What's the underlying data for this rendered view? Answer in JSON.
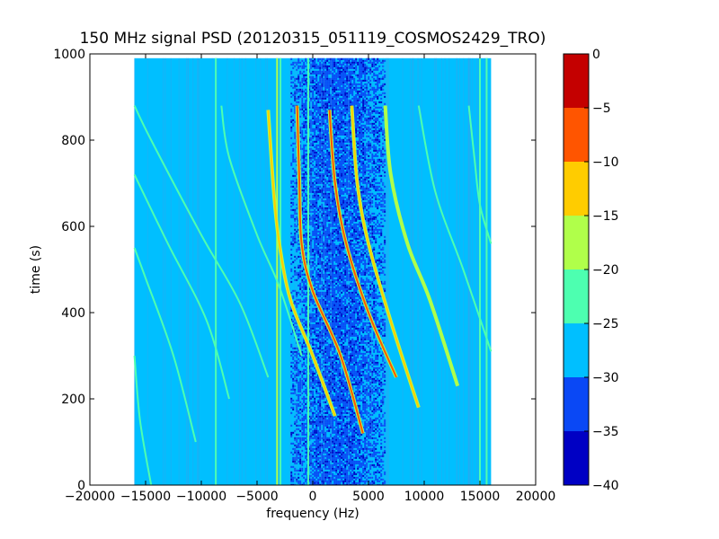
{
  "chart_data": {
    "type": "heatmap",
    "title": "150 MHz signal PSD (20120315_051119_COSMOS2429_TRO)",
    "xlabel": "frequency (Hz)",
    "ylabel": "time (s)",
    "xlim": [
      -20000,
      20000
    ],
    "ylim": [
      0,
      1000
    ],
    "data_extent": {
      "x": [
        -16000,
        16000
      ],
      "y": [
        0,
        990
      ]
    },
    "x_ticks": [
      -20000,
      -15000,
      -10000,
      -5000,
      0,
      5000,
      10000,
      15000,
      20000
    ],
    "x_tick_labels": [
      "−20000",
      "−15000",
      "−10000",
      "−5000",
      "0",
      "5000",
      "10000",
      "15000",
      "20000"
    ],
    "y_ticks": [
      0,
      200,
      400,
      600,
      800,
      1000
    ],
    "y_tick_labels": [
      "0",
      "200",
      "400",
      "600",
      "800",
      "1000"
    ],
    "colorbar": {
      "ticks": [
        0,
        -5,
        -10,
        -15,
        -20,
        -25,
        -30,
        -35,
        -40
      ],
      "tick_labels": [
        "0",
        "−5",
        "−10",
        "−15",
        "−20",
        "−25",
        "−30",
        "−35",
        "−40"
      ],
      "levels": [
        {
          "range": [
            -40,
            -35
          ],
          "color": "#0000c4"
        },
        {
          "range": [
            -35,
            -30
          ],
          "color": "#0a48f5"
        },
        {
          "range": [
            -30,
            -25
          ],
          "color": "#00bfff"
        },
        {
          "range": [
            -25,
            -20
          ],
          "color": "#4dffb0"
        },
        {
          "range": [
            -20,
            -15
          ],
          "color": "#b0ff4a"
        },
        {
          "range": [
            -15,
            -10
          ],
          "color": "#ffcc00"
        },
        {
          "range": [
            -10,
            -5
          ],
          "color": "#ff5500"
        },
        {
          "range": [
            -5,
            0
          ],
          "color": "#c40000"
        }
      ]
    },
    "background_level_db": -28,
    "noise_band_hz": [
      -2000,
      6500
    ],
    "vertical_lines": [
      {
        "x": -8700,
        "level_db": -22
      },
      {
        "x": -3200,
        "level_db": -15
      },
      {
        "x": -2900,
        "level_db": -22
      },
      {
        "x": -400,
        "level_db": -22
      },
      {
        "x": 15000,
        "level_db": -22
      },
      {
        "x": 15600,
        "level_db": -22
      }
    ],
    "doppler_curves": [
      {
        "points": [
          [
            -14500,
            0
          ],
          [
            -15500,
            150
          ],
          [
            -16000,
            300
          ]
        ],
        "level_db": -23
      },
      {
        "points": [
          [
            -10500,
            100
          ],
          [
            -12500,
            300
          ],
          [
            -15000,
            480
          ],
          [
            -16000,
            550
          ]
        ],
        "level_db": -22
      },
      {
        "points": [
          [
            -7500,
            200
          ],
          [
            -9500,
            380
          ],
          [
            -13000,
            560
          ],
          [
            -16000,
            720
          ]
        ],
        "level_db": -22
      },
      {
        "points": [
          [
            -4000,
            250
          ],
          [
            -6500,
            420
          ],
          [
            -10000,
            580
          ],
          [
            -14500,
            800
          ],
          [
            -16000,
            880
          ]
        ],
        "level_db": -22
      },
      {
        "points": [
          [
            -1000,
            300
          ],
          [
            -3000,
            460
          ],
          [
            -5000,
            580
          ],
          [
            -7500,
            760
          ],
          [
            -8200,
            880
          ]
        ],
        "level_db": -20
      },
      {
        "points": [
          [
            2000,
            160
          ],
          [
            0,
            300
          ],
          [
            -2000,
            430
          ],
          [
            -3000,
            560
          ],
          [
            -3500,
            680
          ],
          [
            -4000,
            870
          ]
        ],
        "level_db": -12
      },
      {
        "points": [
          [
            4500,
            120
          ],
          [
            2500,
            300
          ],
          [
            0,
            450
          ],
          [
            -1000,
            560
          ],
          [
            -1200,
            700
          ],
          [
            -1400,
            880
          ]
        ],
        "level_db": -7
      },
      {
        "points": [
          [
            7500,
            250
          ],
          [
            5000,
            400
          ],
          [
            3000,
            560
          ],
          [
            2000,
            700
          ],
          [
            1500,
            870
          ]
        ],
        "level_db": -9
      },
      {
        "points": [
          [
            9500,
            180
          ],
          [
            7000,
            380
          ],
          [
            5000,
            560
          ],
          [
            4000,
            700
          ],
          [
            3500,
            880
          ]
        ],
        "level_db": -10
      },
      {
        "points": [
          [
            13000,
            230
          ],
          [
            10500,
            430
          ],
          [
            8500,
            560
          ],
          [
            7000,
            720
          ],
          [
            6500,
            880
          ]
        ],
        "level_db": -17
      },
      {
        "points": [
          [
            16000,
            310
          ],
          [
            13500,
            500
          ],
          [
            11000,
            680
          ],
          [
            9500,
            880
          ]
        ],
        "level_db": -22
      },
      {
        "points": [
          [
            16000,
            560
          ],
          [
            15000,
            650
          ],
          [
            14500,
            760
          ],
          [
            14000,
            880
          ]
        ],
        "level_db": -22
      }
    ]
  }
}
